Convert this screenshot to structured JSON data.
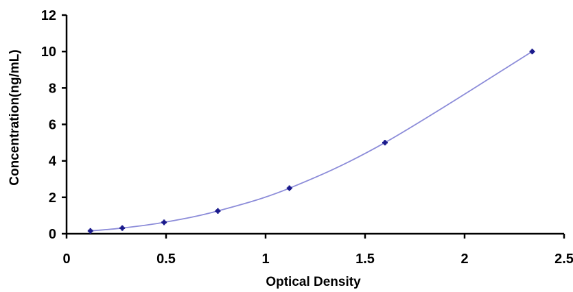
{
  "chart_data": {
    "type": "scatter",
    "title": "",
    "xlabel": "Optical Density",
    "ylabel": "Concentration(ng/mL)",
    "xlim": [
      0,
      2.5
    ],
    "ylim": [
      0,
      12
    ],
    "x_ticks": [
      0,
      0.5,
      1,
      1.5,
      2,
      2.5
    ],
    "x_tick_labels": [
      "0",
      "0.5",
      "1",
      "1.5",
      "2",
      "2.5"
    ],
    "y_ticks": [
      0,
      2,
      4,
      6,
      8,
      10,
      12
    ],
    "y_tick_labels": [
      "0",
      "2",
      "4",
      "6",
      "8",
      "10",
      "12"
    ],
    "grid": false,
    "legend": "none",
    "series": [
      {
        "x": [
          0.12,
          0.28,
          0.49,
          0.76,
          1.12,
          1.6,
          2.34
        ],
        "y": [
          0.156,
          0.312,
          0.625,
          1.25,
          2.5,
          5,
          10
        ],
        "marker_color": "#1a1a8c",
        "line_color": "#8c8cd9",
        "curve": "smooth"
      }
    ]
  }
}
